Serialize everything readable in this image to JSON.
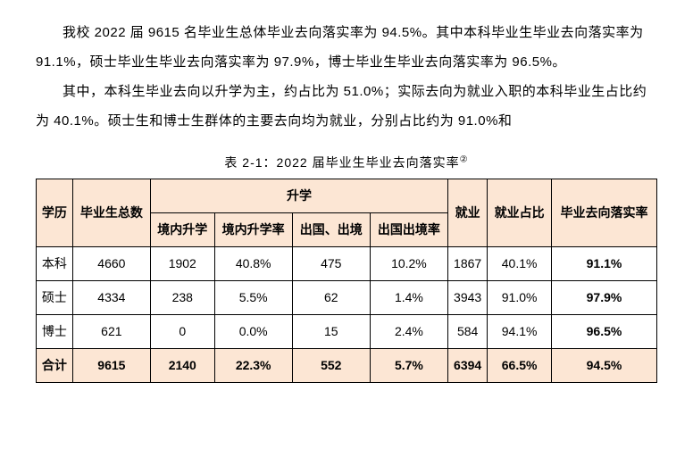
{
  "paragraphs": {
    "p1": "我校 2022 届 9615 名毕业生总体毕业去向落实率为 94.5%。其中本科毕业生毕业去向落实率为 91.1%，硕士毕业生毕业去向落实率为 97.9%，博士毕业生毕业去向落实率为 96.5%。",
    "p2": "其中，本科生毕业去向以升学为主，约占比为 51.0%；实际去向为就业入职的本科毕业生占比约为 40.1%。硕士生和博士生群体的主要去向均为就业，分别占比约为 91.0%和"
  },
  "caption": {
    "text": "表 2-1：2022 届毕业生毕业去向落实率",
    "note_mark": "②"
  },
  "table": {
    "header_bg": "#fce6d4",
    "border_color": "#000000",
    "columns": {
      "degree": "学历",
      "total": "毕业生总数",
      "study_group": "升学",
      "domestic_study": "境内升学",
      "domestic_rate": "境内升学率",
      "abroad_study": "出国、出境",
      "abroad_rate": "出国出境率",
      "employment": "就业",
      "employment_rate": "就业占比",
      "placement_rate": "毕业去向落实率"
    },
    "rows": [
      {
        "degree": "本科",
        "total": "4660",
        "domestic_study": "1902",
        "domestic_rate": "40.8%",
        "abroad_study": "475",
        "abroad_rate": "10.2%",
        "employment": "1867",
        "employment_rate": "40.1%",
        "placement_rate": "91.1%"
      },
      {
        "degree": "硕士",
        "total": "4334",
        "domestic_study": "238",
        "domestic_rate": "5.5%",
        "abroad_study": "62",
        "abroad_rate": "1.4%",
        "employment": "3943",
        "employment_rate": "91.0%",
        "placement_rate": "97.9%"
      },
      {
        "degree": "博士",
        "total": "621",
        "domestic_study": "0",
        "domestic_rate": "0.0%",
        "abroad_study": "15",
        "abroad_rate": "2.4%",
        "employment": "584",
        "employment_rate": "94.1%",
        "placement_rate": "96.5%"
      }
    ],
    "total_row": {
      "degree": "合计",
      "total": "9615",
      "domestic_study": "2140",
      "domestic_rate": "22.3%",
      "abroad_study": "552",
      "abroad_rate": "5.7%",
      "employment": "6394",
      "employment_rate": "66.5%",
      "placement_rate": "94.5%"
    }
  }
}
